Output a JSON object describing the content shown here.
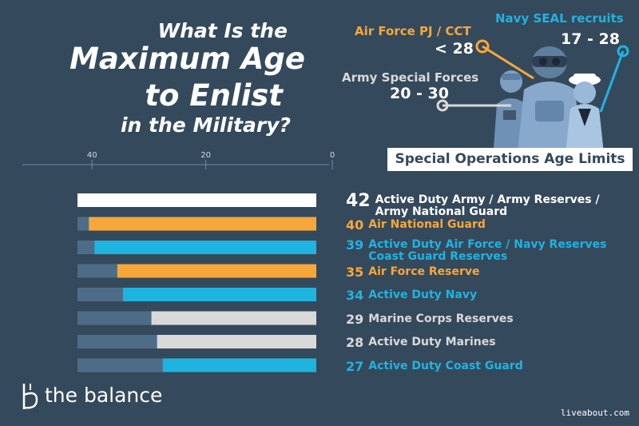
{
  "title": {
    "line1": "What Is the",
    "line2": "Maximum Age",
    "line3": "to Enlist",
    "line4": "in the Military?"
  },
  "special_ops": {
    "banner": "Special Operations Age Limits",
    "items": [
      {
        "name": "Navy SEAL recruits",
        "value": "17 - 28",
        "color": "#1fb3e0"
      },
      {
        "name": "Air Force PJ / CCT",
        "value": "< 28",
        "color": "#f7a73a"
      },
      {
        "name": "Army Special Forces",
        "value": "20 - 30",
        "color": "#d9d9d9"
      }
    ]
  },
  "chart_data": {
    "type": "bar",
    "orientation": "horizontal",
    "x_axis_reversed": true,
    "xlim": [
      0,
      42
    ],
    "ticks": [
      40,
      20,
      0
    ],
    "bar_total": 42,
    "categories": [
      {
        "value": 42,
        "label": "Active Duty Army / Army Reserves / Army National Guard",
        "color": "#ffffff"
      },
      {
        "value": 40,
        "label": "Air National Guard",
        "color": "#f7a73a"
      },
      {
        "value": 39,
        "label": "Active Duty Air Force / Navy Reserves Coast Guard Reserves",
        "color": "#1fb3e0"
      },
      {
        "value": 35,
        "label": "Air Force Reserve",
        "color": "#f7a73a"
      },
      {
        "value": 34,
        "label": "Active Duty Navy",
        "color": "#1fb3e0"
      },
      {
        "value": 29,
        "label": "Marine Corps Reserves",
        "color": "#d9d9d9"
      },
      {
        "value": 28,
        "label": "Active Duty Marines",
        "color": "#d9d9d9"
      },
      {
        "value": 27,
        "label": "Active Duty Coast Guard",
        "color": "#1fb3e0"
      }
    ]
  },
  "branding": {
    "logo_text": "the balance",
    "source": "liveabout.com"
  }
}
